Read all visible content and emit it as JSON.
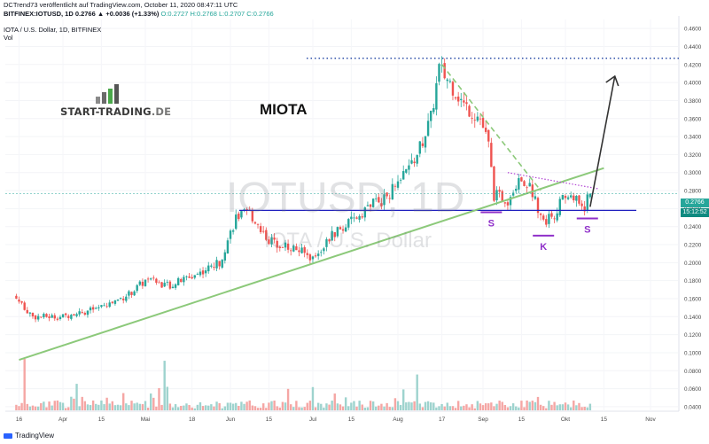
{
  "header": {
    "line1": "DCTrend73 veröffentlicht auf TradingView.com, October 11, 2020 08:47:11 UTC",
    "line2_symbol": "BITFINEX:IOTUSD, 1D 0.2766 ▲ +0.0036 (+1.33%)",
    "line2_ohlc": "O:0.2727 H:0.2768 L:0.2707 C:0.2766",
    "line3": "IOTA / U.S. Dollar, 1D, BITFINEX",
    "line4": "Vol"
  },
  "logo": {
    "brand": "START-TRADING",
    "tld": ".DE"
  },
  "annotation_title": "MIOTA",
  "watermark": {
    "big": "IOTUSD, 1D",
    "small": "IOTA / U.S. Dollar"
  },
  "price_tags": {
    "last": "0.2766",
    "countdown": "15:12:52"
  },
  "footer": {
    "brand": "TradingView"
  },
  "colors": {
    "up": "#26a69a",
    "down": "#ef5350",
    "up_vol": "#9ed3ce",
    "down_vol": "#f5a6a4",
    "support": "#1f1fbf",
    "trend": "#8cc97a",
    "purple": "#8f2fc9",
    "arrow": "#333333",
    "resistance_dot": "#2e4fa8"
  },
  "chart_data": {
    "type": "candlestick",
    "title": "IOTA / U.S. Dollar, 1D, BITFINEX",
    "x_ticks": [
      "16",
      "Apr",
      "15",
      "Mai",
      "18",
      "Jun",
      "15",
      "Jul",
      "15",
      "Aug",
      "17",
      "Sep",
      "15",
      "Okt",
      "15",
      "Nov"
    ],
    "y_ticks": [
      "0.4600",
      "0.4400",
      "0.4200",
      "0.4000",
      "0.3800",
      "0.3600",
      "0.3400",
      "0.3200",
      "0.3000",
      "0.2800",
      "0.2600",
      "0.2400",
      "0.2200",
      "0.2000",
      "0.1800",
      "0.1600",
      "0.1400",
      "0.1200",
      "0.1000",
      "0.0800",
      "0.0600",
      "0.0400"
    ],
    "ylim": [
      0.035,
      0.47
    ],
    "close_path": [
      [
        "2020-03-15",
        0.16
      ],
      [
        "2020-03-21",
        0.14
      ],
      [
        "2020-04-01",
        0.14
      ],
      [
        "2020-04-15",
        0.15
      ],
      [
        "2020-04-25",
        0.165
      ],
      [
        "2020-05-01",
        0.18
      ],
      [
        "2020-05-10",
        0.175
      ],
      [
        "2020-05-18",
        0.185
      ],
      [
        "2020-05-28",
        0.2
      ],
      [
        "2020-06-03",
        0.25
      ],
      [
        "2020-06-08",
        0.255
      ],
      [
        "2020-06-15",
        0.225
      ],
      [
        "2020-06-25",
        0.215
      ],
      [
        "2020-07-01",
        0.205
      ],
      [
        "2020-07-08",
        0.23
      ],
      [
        "2020-07-15",
        0.245
      ],
      [
        "2020-07-22",
        0.265
      ],
      [
        "2020-07-27",
        0.27
      ],
      [
        "2020-08-03",
        0.295
      ],
      [
        "2020-08-08",
        0.32
      ],
      [
        "2020-08-13",
        0.36
      ],
      [
        "2020-08-16",
        0.415
      ],
      [
        "2020-08-20",
        0.4
      ],
      [
        "2020-08-25",
        0.375
      ],
      [
        "2020-08-31",
        0.36
      ],
      [
        "2020-09-03",
        0.33
      ],
      [
        "2020-09-05",
        0.275
      ],
      [
        "2020-09-10",
        0.27
      ],
      [
        "2020-09-14",
        0.295
      ],
      [
        "2020-09-18",
        0.285
      ],
      [
        "2020-09-23",
        0.245
      ],
      [
        "2020-09-27",
        0.255
      ],
      [
        "2020-10-01",
        0.275
      ],
      [
        "2020-10-05",
        0.27
      ],
      [
        "2020-10-08",
        0.262
      ],
      [
        "2020-10-10",
        0.2766
      ]
    ],
    "last": {
      "open": 0.2727,
      "high": 0.2768,
      "low": 0.2707,
      "close": 0.2766,
      "change": 0.0036,
      "change_pct": 1.33
    },
    "annotations": {
      "resistance_level": 0.427,
      "support_level": 0.258,
      "trendline": [
        [
          "2020-03-16",
          0.092
        ],
        [
          "2020-10-15",
          0.305
        ]
      ],
      "downtrend": [
        [
          "2020-08-17",
          0.42
        ],
        [
          "2020-09-22",
          0.28
        ]
      ],
      "neckline_dotted": [
        [
          "2020-09-10",
          0.3
        ],
        [
          "2020-10-13",
          0.282
        ]
      ],
      "target_arrow": [
        [
          "2020-10-10",
          0.262
        ],
        [
          "2020-10-19",
          0.407
        ]
      ],
      "pattern_labels": [
        {
          "label": "S",
          "date": "2020-09-04",
          "price": 0.256
        },
        {
          "label": "K",
          "date": "2020-09-23",
          "price": 0.23
        },
        {
          "label": "S",
          "date": "2020-10-09",
          "price": 0.249
        }
      ]
    }
  }
}
